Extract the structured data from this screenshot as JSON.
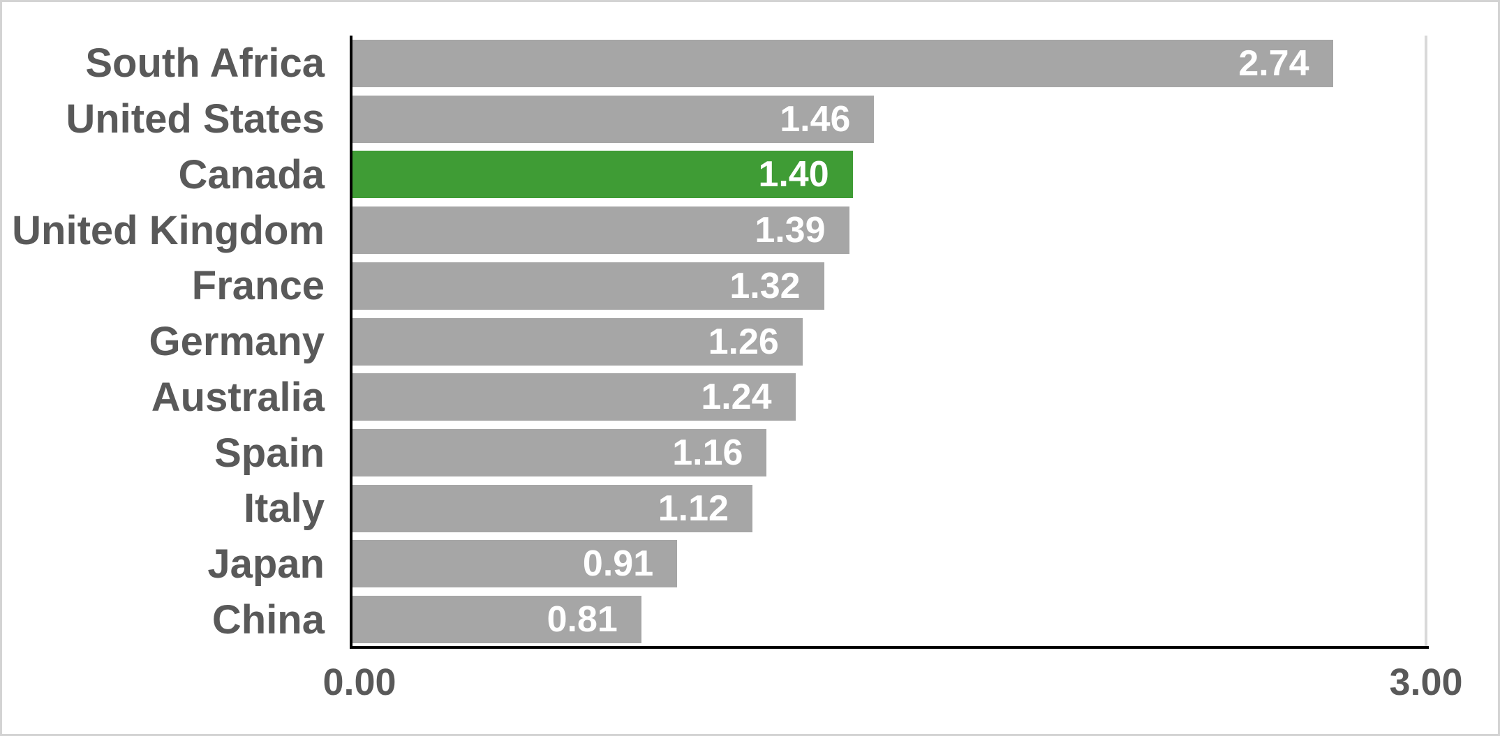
{
  "chart_data": {
    "type": "bar",
    "orientation": "horizontal",
    "title": "",
    "categories": [
      "South Africa",
      "United States",
      "Canada",
      "United Kingdom",
      "France",
      "Germany",
      "Australia",
      "Spain",
      "Italy",
      "Japan",
      "China"
    ],
    "values": [
      2.74,
      1.46,
      1.4,
      1.39,
      1.32,
      1.26,
      1.24,
      1.16,
      1.12,
      0.91,
      0.81
    ],
    "value_labels": [
      "2.74",
      "1.46",
      "1.40",
      "1.39",
      "1.32",
      "1.26",
      "1.24",
      "1.16",
      "1.12",
      "0.91",
      "0.81"
    ],
    "highlight_index": 2,
    "highlight_category": "Canada",
    "xlim": [
      0,
      3
    ],
    "x_tick_labels": [
      "0.00",
      "3.00"
    ],
    "legend": "none",
    "grid": "single-vertical-gridline-at-max",
    "colors": {
      "bar": "#A6A6A6",
      "highlight": "#3F9C35",
      "category_text": "#595959",
      "value_text": "#FFFFFF",
      "axis": "#000000",
      "gridline": "#D9D9D9",
      "background": "#FFFFFF",
      "frame_border": "#D3D3D3"
    }
  }
}
